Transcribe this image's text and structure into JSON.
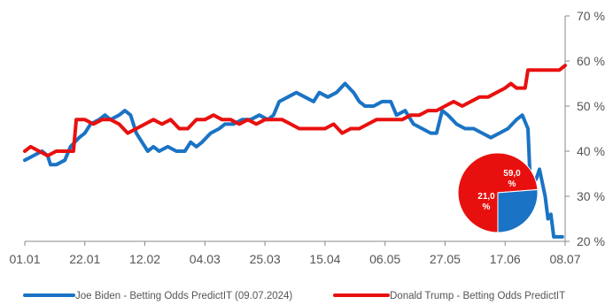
{
  "chart_data": {
    "type": "line",
    "title": "",
    "xlabel": "",
    "ylabel": "",
    "x_ticks": [
      "01.01",
      "22.01",
      "12.02",
      "04.03",
      "25.03",
      "15.04",
      "06.05",
      "27.05",
      "17.06",
      "08.07"
    ],
    "y_ticks": [
      "20 %",
      "30 %",
      "40 %",
      "50 %",
      "60 %",
      "70 %"
    ],
    "ylim": [
      20,
      70
    ],
    "y_axis_position": "right",
    "grid": false,
    "legend_position": "bottom",
    "series": [
      {
        "name": "Joe Biden - Betting Odds PredictIT (09.07.2024)",
        "color": "#1a73c4",
        "points": [
          [
            "01.01",
            38
          ],
          [
            "04.01",
            39
          ],
          [
            "07.01",
            40
          ],
          [
            "09.01",
            39
          ],
          [
            "10.01",
            37
          ],
          [
            "12.01",
            37
          ],
          [
            "15.01",
            38
          ],
          [
            "17.01",
            41
          ],
          [
            "20.01",
            43
          ],
          [
            "22.01",
            44
          ],
          [
            "24.01",
            46
          ],
          [
            "27.01",
            47
          ],
          [
            "29.01",
            48
          ],
          [
            "31.01",
            47
          ],
          [
            "03.02",
            48
          ],
          [
            "05.02",
            49
          ],
          [
            "07.02",
            48
          ],
          [
            "09.02",
            44
          ],
          [
            "11.02",
            42
          ],
          [
            "13.02",
            40
          ],
          [
            "15.02",
            41
          ],
          [
            "17.02",
            40
          ],
          [
            "20.02",
            41
          ],
          [
            "23.02",
            40
          ],
          [
            "26.02",
            40
          ],
          [
            "28.02",
            42
          ],
          [
            "01.03",
            41
          ],
          [
            "03.03",
            42
          ],
          [
            "06.03",
            44
          ],
          [
            "09.03",
            45
          ],
          [
            "11.03",
            46
          ],
          [
            "14.03",
            46
          ],
          [
            "17.03",
            47
          ],
          [
            "20.03",
            47
          ],
          [
            "23.03",
            48
          ],
          [
            "26.03",
            47
          ],
          [
            "28.03",
            48
          ],
          [
            "30.03",
            51
          ],
          [
            "02.04",
            52
          ],
          [
            "05.04",
            53
          ],
          [
            "08.04",
            52
          ],
          [
            "11.04",
            51
          ],
          [
            "13.04",
            53
          ],
          [
            "16.04",
            52
          ],
          [
            "19.04",
            53
          ],
          [
            "22.04",
            55
          ],
          [
            "25.04",
            53
          ],
          [
            "27.04",
            51
          ],
          [
            "29.04",
            50
          ],
          [
            "02.05",
            50
          ],
          [
            "05.05",
            51
          ],
          [
            "08.05",
            51
          ],
          [
            "10.05",
            48
          ],
          [
            "13.05",
            49
          ],
          [
            "16.05",
            46
          ],
          [
            "19.05",
            45
          ],
          [
            "22.05",
            44
          ],
          [
            "24.05",
            44
          ],
          [
            "26.05",
            49
          ],
          [
            "28.05",
            48
          ],
          [
            "31.05",
            46
          ],
          [
            "03.06",
            45
          ],
          [
            "06.06",
            45
          ],
          [
            "09.06",
            44
          ],
          [
            "12.06",
            43
          ],
          [
            "15.06",
            44
          ],
          [
            "18.06",
            45
          ],
          [
            "21.06",
            47
          ],
          [
            "23.06",
            48
          ],
          [
            "25.06",
            45
          ],
          [
            "26.06",
            30
          ],
          [
            "27.06",
            33
          ],
          [
            "28.06",
            34
          ],
          [
            "29.06",
            36
          ],
          [
            "30.06",
            33
          ],
          [
            "01.07",
            30
          ],
          [
            "02.07",
            25
          ],
          [
            "03.07",
            26
          ],
          [
            "04.07",
            21
          ],
          [
            "05.07",
            21
          ],
          [
            "07.07",
            21
          ]
        ]
      },
      {
        "name": "Donald Trump - Betting Odds PredictIT",
        "color": "#e8100e",
        "points": [
          [
            "01.01",
            40
          ],
          [
            "03.01",
            41
          ],
          [
            "06.01",
            40
          ],
          [
            "09.01",
            39
          ],
          [
            "12.01",
            40
          ],
          [
            "15.01",
            40
          ],
          [
            "18.01",
            40
          ],
          [
            "19.01",
            47
          ],
          [
            "22.01",
            47
          ],
          [
            "25.01",
            46
          ],
          [
            "28.01",
            47
          ],
          [
            "31.01",
            47
          ],
          [
            "03.02",
            46
          ],
          [
            "06.02",
            44
          ],
          [
            "09.02",
            45
          ],
          [
            "12.02",
            46
          ],
          [
            "15.02",
            47
          ],
          [
            "18.02",
            46
          ],
          [
            "21.02",
            47
          ],
          [
            "24.02",
            45
          ],
          [
            "27.02",
            45
          ],
          [
            "01.03",
            47
          ],
          [
            "04.03",
            47
          ],
          [
            "07.03",
            48
          ],
          [
            "10.03",
            47
          ],
          [
            "13.03",
            47
          ],
          [
            "16.03",
            46
          ],
          [
            "19.03",
            47
          ],
          [
            "22.03",
            46
          ],
          [
            "25.03",
            47
          ],
          [
            "28.03",
            47
          ],
          [
            "31.03",
            47
          ],
          [
            "03.04",
            46
          ],
          [
            "06.04",
            45
          ],
          [
            "09.04",
            45
          ],
          [
            "12.04",
            45
          ],
          [
            "15.04",
            45
          ],
          [
            "18.04",
            46
          ],
          [
            "21.04",
            44
          ],
          [
            "24.04",
            45
          ],
          [
            "27.04",
            45
          ],
          [
            "30.04",
            46
          ],
          [
            "03.05",
            47
          ],
          [
            "06.05",
            47
          ],
          [
            "09.05",
            47
          ],
          [
            "12.05",
            47
          ],
          [
            "15.05",
            48
          ],
          [
            "18.05",
            48
          ],
          [
            "21.05",
            49
          ],
          [
            "24.05",
            49
          ],
          [
            "27.05",
            50
          ],
          [
            "30.05",
            51
          ],
          [
            "02.06",
            50
          ],
          [
            "05.06",
            51
          ],
          [
            "08.06",
            52
          ],
          [
            "11.06",
            52
          ],
          [
            "14.06",
            53
          ],
          [
            "17.06",
            54
          ],
          [
            "19.06",
            55
          ],
          [
            "21.06",
            54
          ],
          [
            "24.06",
            54
          ],
          [
            "25.06",
            58
          ],
          [
            "28.06",
            58
          ],
          [
            "02.07",
            58
          ],
          [
            "06.07",
            58
          ],
          [
            "08.07",
            59
          ]
        ]
      }
    ],
    "inset_pie": {
      "type": "pie",
      "slices": [
        {
          "label": "59,0 %",
          "value": 59.0,
          "color": "#e8100e"
        },
        {
          "label": "21,0 %",
          "value": 21.0,
          "color": "#1a73c4"
        }
      ]
    }
  }
}
